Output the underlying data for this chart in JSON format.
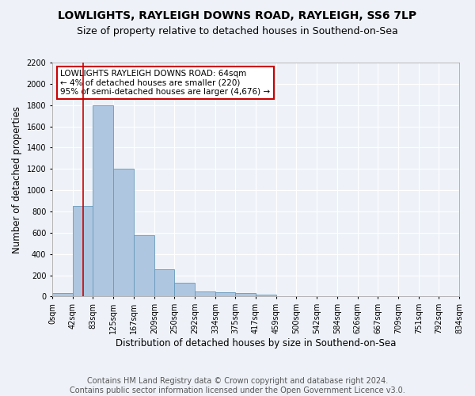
{
  "title": "LOWLIGHTS, RAYLEIGH DOWNS ROAD, RAYLEIGH, SS6 7LP",
  "subtitle": "Size of property relative to detached houses in Southend-on-Sea",
  "xlabel": "Distribution of detached houses by size in Southend-on-Sea",
  "ylabel": "Number of detached properties",
  "footer_line1": "Contains HM Land Registry data © Crown copyright and database right 2024.",
  "footer_line2": "Contains public sector information licensed under the Open Government Licence v3.0.",
  "bin_edges": [
    0,
    42,
    83,
    125,
    167,
    209,
    250,
    292,
    334,
    375,
    417,
    459,
    500,
    542,
    584,
    626,
    667,
    709,
    751,
    792,
    834
  ],
  "bar_heights": [
    30,
    850,
    1800,
    1200,
    580,
    255,
    130,
    45,
    40,
    30,
    20,
    5,
    2,
    1,
    1,
    0,
    0,
    0,
    0,
    0
  ],
  "bar_color": "#aec6e0",
  "bar_edge_color": "#6699bb",
  "red_line_x": 64,
  "red_line_color": "#cc0000",
  "annotation_text": "LOWLIGHTS RAYLEIGH DOWNS ROAD: 64sqm\n← 4% of detached houses are smaller (220)\n95% of semi-detached houses are larger (4,676) →",
  "annotation_box_color": "#ffffff",
  "annotation_box_edge_color": "#cc0000",
  "ylim": [
    0,
    2200
  ],
  "yticks": [
    0,
    200,
    400,
    600,
    800,
    1000,
    1200,
    1400,
    1600,
    1800,
    2000,
    2200
  ],
  "tick_labels": [
    "0sqm",
    "42sqm",
    "83sqm",
    "125sqm",
    "167sqm",
    "209sqm",
    "250sqm",
    "292sqm",
    "334sqm",
    "375sqm",
    "417sqm",
    "459sqm",
    "500sqm",
    "542sqm",
    "584sqm",
    "626sqm",
    "667sqm",
    "709sqm",
    "751sqm",
    "792sqm",
    "834sqm"
  ],
  "background_color": "#eef2f8",
  "grid_color": "#ffffff",
  "title_fontsize": 10,
  "subtitle_fontsize": 9,
  "axis_label_fontsize": 8.5,
  "tick_fontsize": 7,
  "footer_fontsize": 7,
  "annotation_fontsize": 7.5
}
